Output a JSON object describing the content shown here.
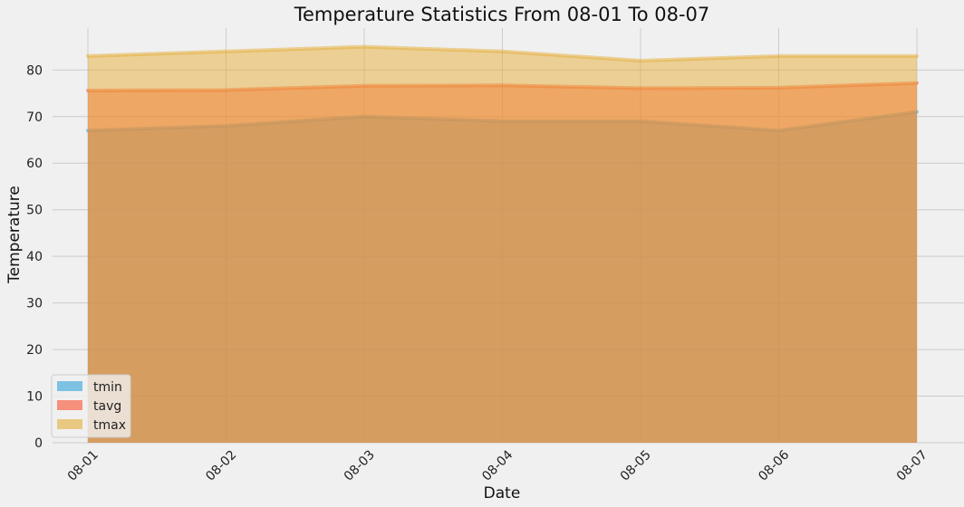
{
  "chart_data": {
    "type": "area",
    "title": "Temperature Statistics From 08-01 To 08-07",
    "xlabel": "Date",
    "ylabel": "Temperature",
    "categories": [
      "08-01",
      "08-02",
      "08-03",
      "08-04",
      "08-05",
      "08-06",
      "08-07"
    ],
    "yticks": [
      "0",
      "10",
      "20",
      "30",
      "40",
      "50",
      "60",
      "70",
      "80"
    ],
    "ylim": [
      0,
      89
    ],
    "stacked": false,
    "grid": true,
    "legend_position": "lower-left",
    "series": [
      {
        "name": "tmin",
        "values": [
          67,
          68,
          70,
          69,
          69,
          67,
          71
        ],
        "color": "#30a2da"
      },
      {
        "name": "tavg",
        "values": [
          75.6,
          75.7,
          76.6,
          76.7,
          76.1,
          76.2,
          77.2
        ],
        "color": "#fc4f30"
      },
      {
        "name": "tmax",
        "values": [
          83,
          84,
          85,
          84,
          82,
          83,
          83
        ],
        "color": "#e5ae38"
      }
    ]
  }
}
